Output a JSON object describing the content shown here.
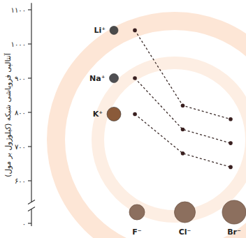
{
  "chart_data": {
    "type": "line",
    "y_label": "آنتالپی فروپاشی شبکه (کیلوژول بر مول)",
    "categories": [
      "F⁻",
      "Cl⁻",
      "Br⁻"
    ],
    "series": [
      {
        "name": "Li⁺",
        "color": "#4a4a4a",
        "values": [
          1040,
          820,
          780
        ]
      },
      {
        "name": "Na⁺",
        "color": "#4f4f52",
        "values": [
          900,
          750,
          710
        ]
      },
      {
        "name": "K⁺",
        "color": "#8a5a3a",
        "values": [
          795,
          680,
          640
        ]
      }
    ],
    "marker": "circle",
    "line_style": "dashed",
    "ylim": [
      0,
      1120
    ],
    "yticks": [
      {
        "value": 0,
        "label": "۰"
      },
      {
        "value": 600,
        "label": "۶۰۰"
      },
      {
        "value": 700,
        "label": "۷۰۰"
      },
      {
        "value": 800,
        "label": "۸۰۰"
      },
      {
        "value": 900,
        "label": "۹۰۰"
      },
      {
        "value": 1000,
        "label": "۱۰۰۰"
      },
      {
        "value": 1100,
        "label": "۱۱۰۰"
      }
    ]
  }
}
